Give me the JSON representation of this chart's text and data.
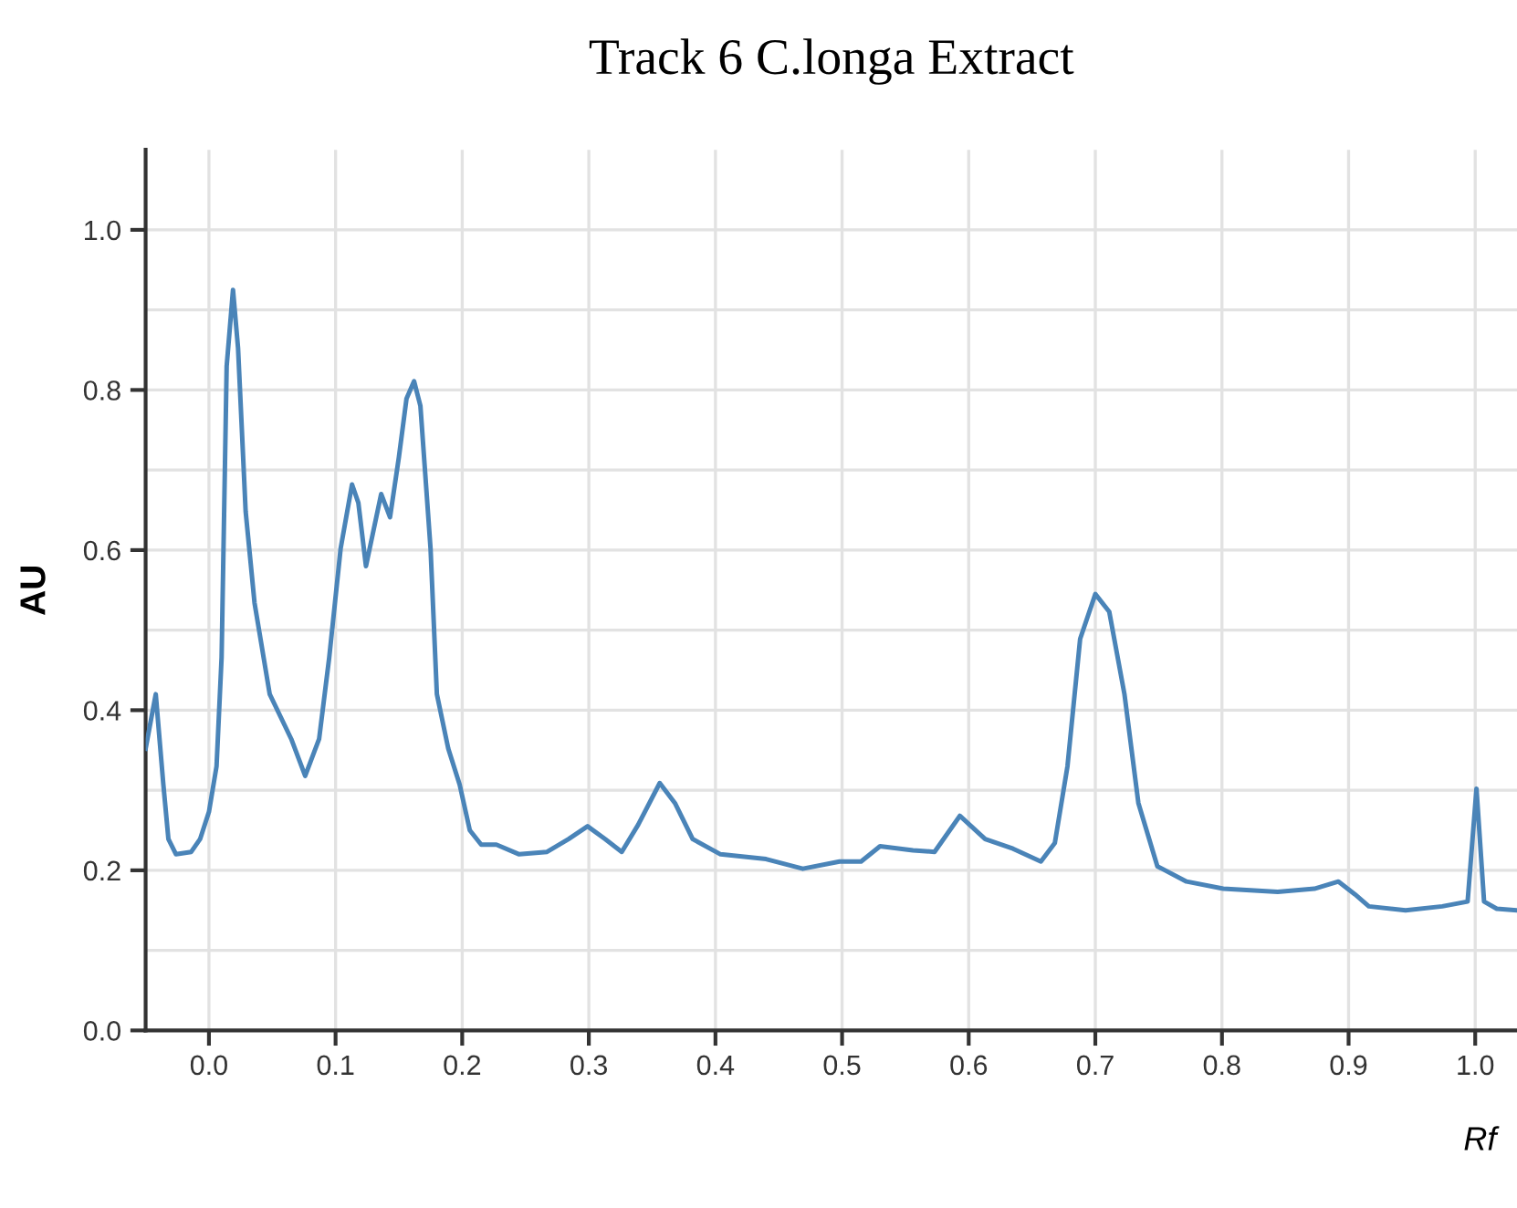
{
  "chart_data": {
    "type": "line",
    "title": "Track 6 C.longa Extract",
    "xlabel": "Rf",
    "ylabel": "AU",
    "xlim": [
      -0.05,
      1.033
    ],
    "ylim": [
      0,
      1.1
    ],
    "xticks": [
      {
        "value": 0,
        "label": "0.0"
      },
      0.1,
      0.2,
      0.3,
      0.4,
      0.5,
      0.6,
      0.7,
      0.8,
      0.9,
      {
        "value": 1,
        "label": "1.0"
      }
    ],
    "yticks": [
      {
        "value": 0,
        "label": "0.0"
      },
      {
        "value": 0.1,
        "label": null
      },
      0.2,
      {
        "value": 0.3,
        "label": null
      },
      0.4,
      {
        "value": 0.5,
        "label": null
      },
      0.6,
      {
        "value": 0.7,
        "label": null
      },
      0.8,
      {
        "value": 0.9,
        "label": null
      },
      {
        "value": 1,
        "label": "1.0"
      }
    ],
    "grid": true,
    "marker": "none",
    "line_style": "solid",
    "series": [
      {
        "color": "#4a84b8",
        "x": [
          -0.05,
          -0.042,
          -0.036,
          -0.032,
          -0.026,
          -0.014,
          -0.007,
          0.0,
          0.006,
          0.01,
          0.014,
          0.019,
          0.023,
          0.029,
          0.036,
          0.048,
          0.065,
          0.076,
          0.087,
          0.095,
          0.104,
          0.113,
          0.118,
          0.124,
          0.13,
          0.136,
          0.143,
          0.15,
          0.156,
          0.162,
          0.167,
          0.175,
          0.18,
          0.189,
          0.198,
          0.206,
          0.215,
          0.227,
          0.245,
          0.267,
          0.284,
          0.299,
          0.313,
          0.326,
          0.339,
          0.356,
          0.368,
          0.382,
          0.404,
          0.44,
          0.469,
          0.498,
          0.515,
          0.53,
          0.556,
          0.573,
          0.593,
          0.613,
          0.635,
          0.657,
          0.668,
          0.678,
          0.688,
          0.7,
          0.711,
          0.723,
          0.734,
          0.749,
          0.772,
          0.801,
          0.844,
          0.873,
          0.892,
          0.905,
          0.916,
          0.945,
          0.974,
          0.994,
          1.001,
          1.007,
          1.017,
          1.033
        ],
        "values": [
          0.352,
          0.42,
          0.307,
          0.239,
          0.22,
          0.223,
          0.239,
          0.273,
          0.33,
          0.466,
          0.83,
          0.925,
          0.852,
          0.648,
          0.534,
          0.42,
          0.364,
          0.318,
          0.364,
          0.466,
          0.602,
          0.682,
          0.659,
          0.58,
          0.625,
          0.67,
          0.641,
          0.716,
          0.789,
          0.811,
          0.78,
          0.602,
          0.42,
          0.352,
          0.307,
          0.25,
          0.232,
          0.232,
          0.22,
          0.223,
          0.239,
          0.255,
          0.239,
          0.223,
          0.257,
          0.309,
          0.284,
          0.239,
          0.22,
          0.214,
          0.202,
          0.211,
          0.211,
          0.23,
          0.225,
          0.223,
          0.268,
          0.239,
          0.227,
          0.211,
          0.234,
          0.33,
          0.489,
          0.545,
          0.523,
          0.42,
          0.284,
          0.205,
          0.186,
          0.177,
          0.173,
          0.177,
          0.186,
          0.17,
          0.155,
          0.15,
          0.155,
          0.161,
          0.302,
          0.161,
          0.152,
          0.15
        ]
      }
    ]
  }
}
